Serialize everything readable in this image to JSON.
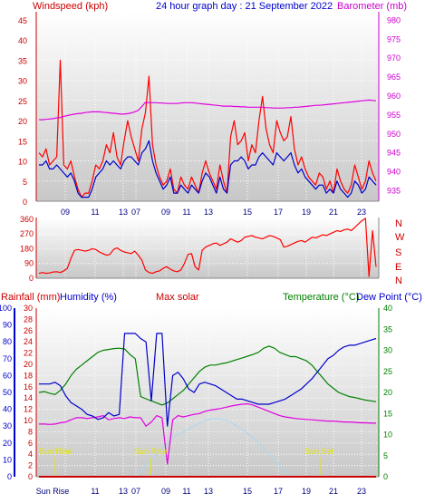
{
  "header": {
    "windspeed_label": "Windspeed (kph)",
    "title": "24 hour graph day : 21 September 2022",
    "barometer_label": "Barometer (mb)"
  },
  "colors": {
    "wind": "#ff0000",
    "gust_avg": "#0000cc",
    "barometer": "#e000e0",
    "temperature": "#008000",
    "dew_point": "#e000e0",
    "humidity": "#0000cc",
    "rainfall": "#cc0000",
    "solar": "#a8d8f0",
    "sun_marker": "#e6e600",
    "axis_red": "#cc0000",
    "axis_green": "#008000",
    "axis_blue": "#0000cc"
  },
  "x_axis": {
    "tick_labels": [
      "09",
      "11",
      "13",
      "07",
      "09",
      "11",
      "13",
      "15",
      "17",
      "19",
      "21",
      "23"
    ],
    "bottom_tick_labels": [
      "Sun Rise",
      "11",
      "13",
      "07",
      "09",
      "11",
      "13",
      "15",
      "17",
      "19",
      "21",
      "23"
    ]
  },
  "chart_data": [
    {
      "type": "line",
      "name": "windspeed_barometer",
      "left_axis": {
        "label": "Windspeed (kph)",
        "ticks": [
          0,
          5,
          10,
          15,
          20,
          25,
          30,
          35,
          40,
          45
        ]
      },
      "right_axis": {
        "label": "Barometer (mb)",
        "ticks": [
          935,
          940,
          945,
          950,
          955,
          960,
          965,
          970,
          975,
          980
        ]
      },
      "series": [
        {
          "name": "Windspeed",
          "axis": "left",
          "values": [
            12,
            11,
            13,
            9,
            10,
            11,
            35,
            9,
            8,
            10,
            6,
            3,
            1,
            2,
            2,
            5,
            9,
            8,
            10,
            14,
            12,
            17,
            11,
            9,
            15,
            20,
            16,
            13,
            10,
            18,
            22,
            31,
            14,
            9,
            6,
            4,
            5,
            8,
            3,
            2,
            6,
            4,
            3,
            6,
            4,
            2,
            7,
            10,
            7,
            5,
            3,
            9,
            5,
            2,
            16,
            20,
            14,
            15,
            17,
            10,
            14,
            12,
            20,
            26,
            18,
            14,
            12,
            20,
            17,
            15,
            16,
            21,
            13,
            9,
            11,
            8,
            6,
            5,
            4,
            7,
            6,
            3,
            5,
            2,
            8,
            5,
            3,
            2,
            4,
            9,
            6,
            3,
            5,
            10,
            7,
            5
          ]
        },
        {
          "name": "Average",
          "axis": "left",
          "values": [
            9,
            9,
            10,
            8,
            8,
            9,
            8,
            7,
            6,
            7,
            5,
            2,
            1,
            1,
            1,
            3,
            6,
            7,
            8,
            10,
            9,
            10,
            9,
            8,
            10,
            11,
            11,
            10,
            9,
            12,
            13,
            15,
            10,
            7,
            5,
            3,
            4,
            6,
            2,
            2,
            4,
            3,
            2,
            4,
            3,
            2,
            5,
            7,
            6,
            4,
            2,
            6,
            3,
            2,
            9,
            10,
            10,
            11,
            10,
            8,
            9,
            9,
            11,
            12,
            11,
            10,
            9,
            12,
            11,
            10,
            11,
            12,
            9,
            7,
            8,
            6,
            5,
            4,
            3,
            4,
            4,
            2,
            3,
            2,
            5,
            3,
            2,
            1,
            2,
            5,
            4,
            2,
            3,
            6,
            5,
            4
          ]
        },
        {
          "name": "Barometer",
          "axis": "right",
          "values": [
            953.5,
            953.5,
            953.6,
            953.7,
            953.8,
            954.0,
            954.1,
            954.4,
            954.6,
            954.8,
            955.0,
            955.1,
            955.2,
            955.4,
            955.5,
            955.6,
            955.6,
            955.6,
            955.5,
            955.4,
            955.3,
            955.2,
            955.1,
            955.0,
            955.0,
            955.1,
            955.3,
            955.6,
            956.0,
            957.0,
            958.1,
            958.0,
            958.0,
            958.0,
            957.9,
            957.9,
            957.8,
            957.8,
            957.8,
            957.8,
            957.9,
            958.0,
            958.0,
            958.0,
            957.9,
            957.8,
            957.7,
            957.6,
            957.5,
            957.4,
            957.3,
            957.2,
            957.1,
            957.1,
            957.1,
            957.0,
            957.0,
            956.9,
            956.9,
            956.8,
            956.8,
            956.8,
            956.8,
            956.8,
            956.7,
            956.7,
            956.6,
            956.6,
            956.6,
            956.6,
            956.7,
            956.7,
            956.8,
            956.8,
            956.9,
            957.0,
            957.1,
            957.2,
            957.3,
            957.3,
            957.4,
            957.5,
            957.6,
            957.7,
            957.8,
            957.9,
            958.0,
            958.1,
            958.2,
            958.3,
            958.4,
            958.5,
            958.6,
            958.7,
            958.6,
            958.5
          ]
        }
      ]
    },
    {
      "type": "line",
      "name": "wind_direction",
      "left_axis": {
        "ticks": [
          0,
          90,
          180,
          270,
          360
        ]
      },
      "right_axis": {
        "ticks": [
          "N",
          "W",
          "S",
          "E",
          "N"
        ]
      },
      "series": [
        {
          "name": "Wind direction",
          "values": [
            30,
            35,
            30,
            32,
            38,
            40,
            35,
            45,
            60,
            120,
            170,
            175,
            170,
            165,
            170,
            180,
            175,
            160,
            150,
            140,
            145,
            175,
            185,
            170,
            160,
            155,
            150,
            165,
            140,
            110,
            50,
            35,
            30,
            40,
            45,
            60,
            70,
            55,
            45,
            40,
            50,
            90,
            145,
            150,
            70,
            50,
            170,
            190,
            200,
            210,
            215,
            200,
            210,
            220,
            240,
            230,
            220,
            230,
            250,
            255,
            260,
            250,
            245,
            240,
            250,
            260,
            255,
            245,
            235,
            190,
            195,
            205,
            215,
            225,
            230,
            220,
            235,
            250,
            245,
            255,
            265,
            260,
            270,
            280,
            290,
            285,
            295,
            300,
            290,
            310,
            330,
            350,
            365,
            10,
            290,
            70
          ]
        }
      ]
    },
    {
      "type": "line",
      "name": "temperature_humidity",
      "left_axis_rain": {
        "label": "Rainfall (mm)",
        "ticks": [
          0,
          1,
          2,
          3,
          4,
          5,
          6,
          7,
          8,
          9,
          10
        ]
      },
      "left_axis_humidity": {
        "label": "Humidity (%)",
        "ticks": [
          0,
          10,
          20,
          30,
          40,
          50,
          60,
          70,
          80,
          90,
          100
        ]
      },
      "left_axis_solar": {
        "label": "Max solar",
        "ticks": [
          0,
          2,
          4,
          6,
          8,
          10,
          12,
          14,
          16,
          18,
          20,
          22,
          24,
          26,
          28,
          30
        ]
      },
      "right_axis": {
        "label": "Temperature (°C)",
        "label2": "Dew Point (°C)",
        "ticks": [
          0,
          5,
          10,
          15,
          20,
          25,
          30,
          35,
          40
        ]
      },
      "annotations": [
        "Sun Rise",
        "Sun Rise",
        "Sun Set"
      ],
      "series": [
        {
          "name": "Temperature",
          "axis": "right",
          "values": [
            20.0,
            20.2,
            19.8,
            19.5,
            20.5,
            22.0,
            24.0,
            25.5,
            26.5,
            27.5,
            28.5,
            29.5,
            30.0,
            30.2,
            30.4,
            30.5,
            30.3,
            29.0,
            28.0,
            19.0,
            18.5,
            18.0,
            17.5,
            17.0,
            17.5,
            18.5,
            19.5,
            20.5,
            22.0,
            23.5,
            25.0,
            26.0,
            26.5,
            26.5,
            26.8,
            27.0,
            27.4,
            27.8,
            28.2,
            28.6,
            29.0,
            29.5,
            30.5,
            31.0,
            30.5,
            29.5,
            29.0,
            28.5,
            28.5,
            28.0,
            27.5,
            26.5,
            25.0,
            23.5,
            22.0,
            21.0,
            20.0,
            19.5,
            19.0,
            18.8,
            18.5,
            18.2,
            18.0,
            17.8
          ]
        },
        {
          "name": "Dew point",
          "axis": "right",
          "values": [
            12.5,
            12.5,
            12.4,
            12.5,
            12.8,
            13.0,
            13.5,
            14.0,
            14.0,
            13.8,
            14.0,
            14.2,
            14.5,
            13.5,
            13.8,
            14.0,
            13.8,
            14.2,
            14.0,
            14.0,
            12.0,
            13.0,
            14.5,
            14.0,
            3.0,
            13.5,
            14.5,
            14.2,
            14.5,
            14.8,
            15.0,
            15.5,
            15.8,
            16.0,
            16.2,
            16.5,
            16.8,
            17.0,
            17.2,
            17.3,
            17.0,
            16.5,
            16.0,
            15.5,
            15.0,
            14.5,
            14.2,
            14.0,
            13.8,
            13.7,
            13.6,
            13.5,
            13.4,
            13.3,
            13.2,
            13.2,
            13.1,
            13.0,
            13.0,
            12.9,
            12.8,
            12.8,
            12.7,
            12.7
          ]
        },
        {
          "name": "Humidity",
          "axis": "humidity",
          "values": [
            55,
            55,
            55,
            56,
            54,
            48,
            44,
            42,
            40,
            37,
            36,
            34,
            35,
            38,
            36,
            37,
            85,
            85,
            85,
            82,
            80,
            45,
            85,
            85,
            30,
            60,
            62,
            58,
            52,
            50,
            55,
            56,
            55,
            54,
            52,
            50,
            48,
            46,
            46,
            45,
            44,
            43,
            43,
            43,
            44,
            45,
            46,
            48,
            50,
            52,
            55,
            58,
            62,
            66,
            70,
            72,
            75,
            77,
            78,
            78,
            79,
            80,
            81,
            82
          ]
        },
        {
          "name": "Rainfall",
          "axis": "rain",
          "values": [
            0,
            0,
            0,
            0,
            0,
            0,
            0,
            0,
            0,
            0,
            0,
            0,
            0,
            0,
            0,
            0,
            0,
            0,
            0,
            0,
            0,
            0,
            0,
            0,
            0,
            0,
            0,
            0,
            0,
            0,
            0,
            0,
            0,
            0,
            0,
            0,
            0,
            0,
            0,
            0,
            0,
            0,
            0,
            0,
            0,
            0,
            0,
            0,
            0,
            0,
            0,
            0,
            0,
            0,
            0,
            0,
            0,
            0,
            0,
            0,
            0,
            0,
            0,
            0
          ]
        },
        {
          "name": "Solar",
          "axis": "solar",
          "values": [
            0,
            0,
            0,
            0,
            0,
            0,
            0,
            0,
            0,
            0,
            0,
            0,
            0,
            0,
            0,
            0,
            0,
            0,
            0,
            1,
            2,
            3,
            4,
            5,
            6,
            7,
            7.5,
            8,
            8.5,
            9,
            9.5,
            10,
            10.2,
            10.3,
            10.2,
            10,
            9.6,
            9,
            8.4,
            7.7,
            7,
            6,
            5,
            4,
            3,
            2,
            1,
            0,
            0,
            0,
            0,
            0,
            0,
            0,
            0,
            0,
            0,
            0,
            0,
            0,
            0,
            0,
            0,
            0
          ]
        }
      ]
    }
  ]
}
